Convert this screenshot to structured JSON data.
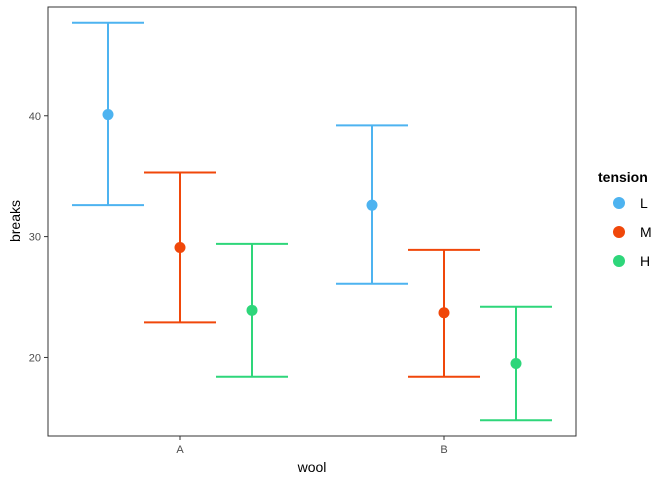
{
  "chart_data": {
    "type": "errorbar",
    "xlabel": "wool",
    "ylabel": "breaks",
    "categories": [
      "A",
      "B"
    ],
    "ylim": [
      13.5,
      49.0
    ],
    "yticks": [
      20,
      30,
      40
    ],
    "grid": false,
    "legend": {
      "title": "tension",
      "placement": "right"
    },
    "series": [
      {
        "name": "L",
        "color": "#4db3f0",
        "mean": [
          40.1,
          32.6
        ],
        "lower": [
          32.6,
          26.1
        ],
        "upper": [
          47.7,
          39.2
        ]
      },
      {
        "name": "M",
        "color": "#f0470a",
        "mean": [
          29.1,
          23.7
        ],
        "lower": [
          22.9,
          18.4
        ],
        "upper": [
          35.3,
          28.9
        ]
      },
      {
        "name": "H",
        "color": "#2ed67a",
        "mean": [
          23.9,
          19.5
        ],
        "lower": [
          18.4,
          14.8
        ],
        "upper": [
          29.4,
          24.2
        ]
      }
    ]
  }
}
